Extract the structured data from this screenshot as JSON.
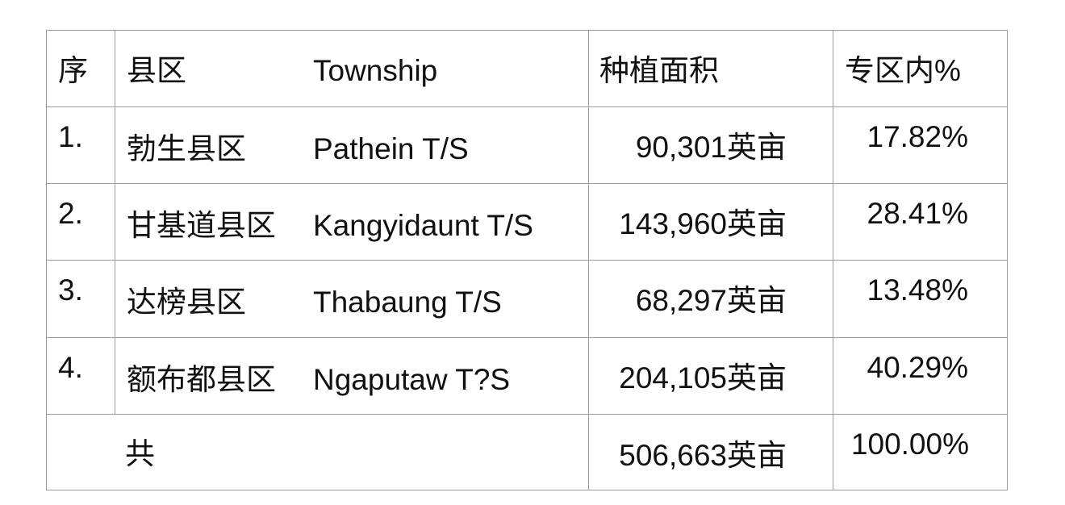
{
  "header": {
    "no": "序",
    "county": "县区",
    "township": "Township",
    "area": "种植面积",
    "percent": "专区内%"
  },
  "rows": [
    {
      "no": "1.",
      "county": "勃生县区",
      "township": "Pathein T/S",
      "area": "90,301英亩",
      "percent": "17.82%"
    },
    {
      "no": "2.",
      "county": "甘基道县区",
      "township": "Kangyidaunt T/S",
      "area": "143,960英亩",
      "percent": "28.41%"
    },
    {
      "no": "3.",
      "county": "达榜县区",
      "township": "Thabaung T/S",
      "area": "68,297英亩",
      "percent": "13.48%"
    },
    {
      "no": "4.",
      "county": "额布都县区",
      "township": "Ngaputaw T?S",
      "area": "204,105英亩",
      "percent": "40.29%"
    }
  ],
  "total": {
    "label": "共",
    "area": "506,663英亩",
    "percent": "100.00%"
  }
}
